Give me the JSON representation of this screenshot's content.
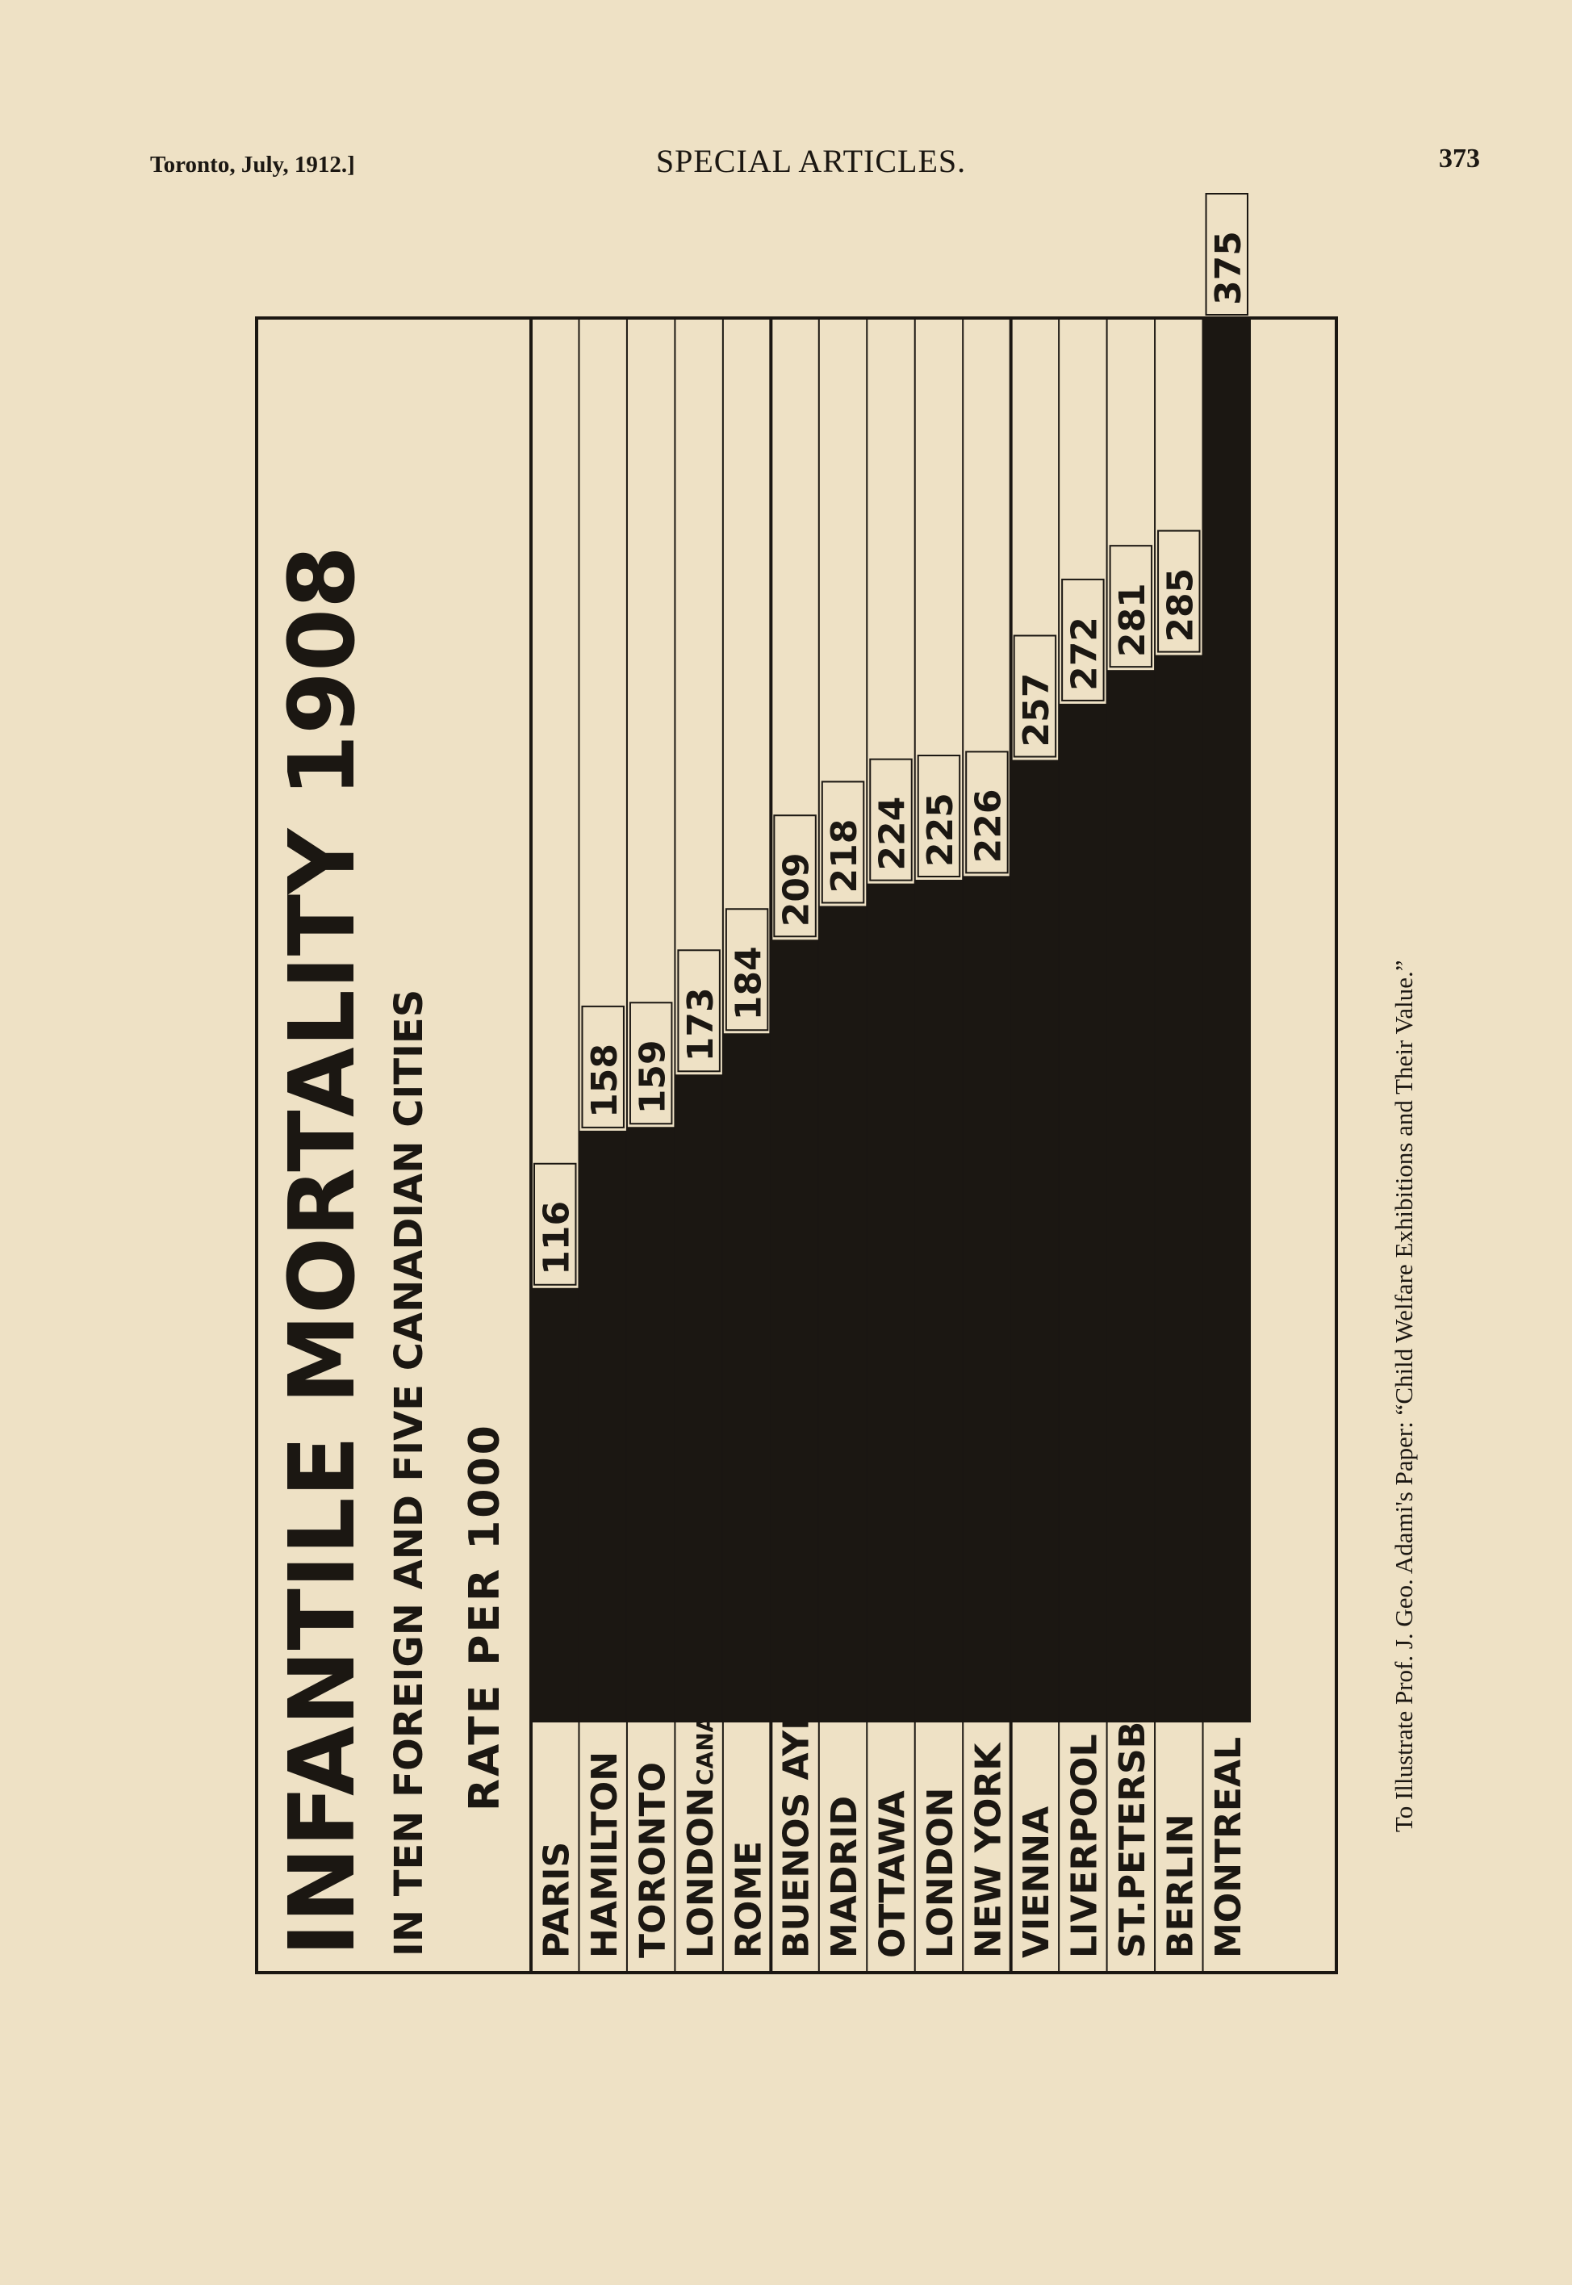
{
  "header": {
    "left": "Toronto, July, 1912.]",
    "center": "SPECIAL ARTICLES.",
    "right": "373"
  },
  "caption": "To Illustrate Prof. J. Geo. Adami's Paper: “Child Welfare Exhibitions and Their Value.”",
  "chart_data": {
    "type": "bar",
    "orientation": "horizontal",
    "title": "INFANTILE MORTALITY 1908",
    "subtitle": "IN TEN FOREIGN AND FIVE CANADIAN CITIES",
    "subtitle2": "RATE PER 1000",
    "categories": [
      "PARIS",
      "HAMILTON",
      "TORONTO",
      "LONDON",
      "ROME",
      "BUENOS AYRES",
      "MADRID",
      "OTTAWA",
      "LONDON",
      "NEW YORK",
      "VIENNA",
      "LIVERPOOL",
      "ST.PETERSBURG",
      "BERLIN",
      "MONTREAL"
    ],
    "category_note": {
      "index": 3,
      "text": "CANADA"
    },
    "values": [
      116,
      158,
      159,
      173,
      184,
      209,
      218,
      224,
      225,
      226,
      257,
      272,
      281,
      285,
      375
    ],
    "value_labels": [
      "116",
      "158",
      "159",
      "173",
      "184",
      "209",
      "218",
      "224",
      "225",
      "226",
      "257",
      "272",
      "281",
      "285",
      "375"
    ],
    "xlim": [
      0,
      375
    ],
    "grid": false,
    "legend": "none",
    "colors": {
      "bar": "#1b1712",
      "paper": "#eee1c5"
    }
  }
}
